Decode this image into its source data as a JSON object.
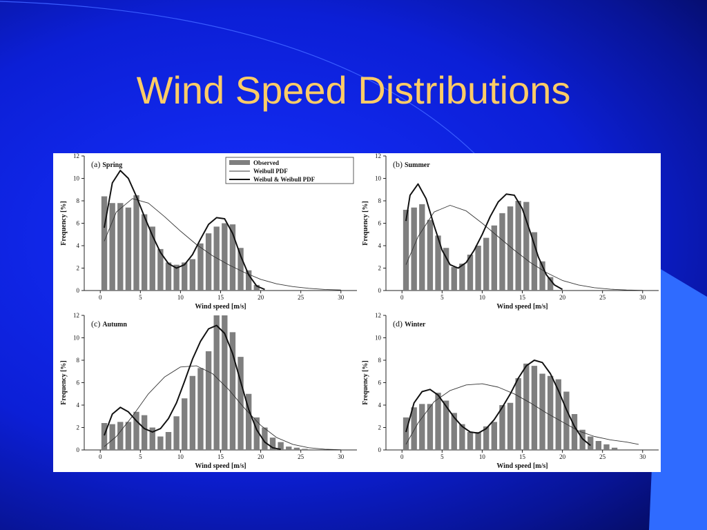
{
  "slide": {
    "title": "Wind Speed Distributions"
  },
  "colors": {
    "background": "#0c1fd6",
    "title": "#ffcc66",
    "bars": "#7f7f7f",
    "weibull": "#333333",
    "mixture": "#111111"
  },
  "chart_data": [
    {
      "type": "bar",
      "panel_label": "(a)",
      "title": "Spring",
      "xlabel": "Wind speed [m/s]",
      "ylabel": "Frequency [%]",
      "xlim": [
        -2,
        32
      ],
      "ylim": [
        0,
        12
      ],
      "xticks": [
        0,
        5,
        10,
        15,
        20,
        25,
        30
      ],
      "yticks": [
        0,
        2,
        4,
        6,
        8,
        10,
        12
      ],
      "legend_position": "top-right",
      "legend": [
        "Observed",
        "Weibull  PDF",
        "Weibul & Weibull PDF"
      ],
      "series": [
        {
          "name": "Observed",
          "x": [
            0.5,
            1.5,
            2.5,
            3.5,
            4.5,
            5.5,
            6.5,
            7.5,
            8.5,
            9.5,
            10.5,
            11.5,
            12.5,
            13.5,
            14.5,
            15.5,
            16.5,
            17.5,
            18.5,
            19.5
          ],
          "values": [
            8.4,
            7.8,
            7.8,
            7.4,
            8.5,
            6.8,
            5.7,
            3.7,
            2.5,
            2.3,
            2.5,
            2.8,
            4.2,
            5.1,
            5.7,
            6.0,
            5.9,
            3.8,
            1.8,
            0.5
          ]
        },
        {
          "name": "Weibull  PDF",
          "x": [
            0.5,
            2,
            4,
            6,
            8,
            10,
            12,
            14,
            16,
            18,
            20,
            22,
            24,
            26,
            28,
            30
          ],
          "values": [
            4.4,
            7.0,
            8.2,
            7.8,
            6.6,
            5.3,
            4.1,
            3.1,
            2.3,
            1.6,
            1.0,
            0.6,
            0.35,
            0.2,
            0.1,
            0.05
          ]
        },
        {
          "name": "Weibul & Weibull PDF",
          "x": [
            0.5,
            1.5,
            2.5,
            3.5,
            4.5,
            5.5,
            6.5,
            7.5,
            8.5,
            9.5,
            10.5,
            11.5,
            12.5,
            13.5,
            14.5,
            15.5,
            16.5,
            17.5,
            18.5,
            19.5,
            20.5
          ],
          "values": [
            5.6,
            9.6,
            10.7,
            10.0,
            8.4,
            6.6,
            4.9,
            3.4,
            2.4,
            2.0,
            2.3,
            3.2,
            4.6,
            5.9,
            6.5,
            6.4,
            5.1,
            3.1,
            1.4,
            0.4,
            0.1
          ]
        }
      ]
    },
    {
      "type": "bar",
      "panel_label": "(b)",
      "title": "Summer",
      "xlabel": "Wind speed [m/s]",
      "ylabel": "Frequency [%]",
      "xlim": [
        -2,
        32
      ],
      "ylim": [
        0,
        12
      ],
      "xticks": [
        0,
        5,
        10,
        15,
        20,
        25,
        30
      ],
      "yticks": [
        0,
        2,
        4,
        6,
        8,
        10,
        12
      ],
      "series": [
        {
          "name": "Observed",
          "x": [
            0.5,
            1.5,
            2.5,
            3.5,
            4.5,
            5.5,
            6.5,
            7.5,
            8.5,
            9.5,
            10.5,
            11.5,
            12.5,
            13.5,
            14.5,
            15.5,
            16.5,
            17.5,
            18.5
          ],
          "values": [
            7.2,
            7.4,
            7.7,
            6.3,
            4.9,
            3.8,
            2.1,
            2.4,
            3.2,
            4.0,
            4.7,
            5.8,
            6.9,
            7.5,
            8.0,
            7.9,
            5.2,
            2.6,
            1.2
          ]
        },
        {
          "name": "Weibull  PDF",
          "x": [
            0.5,
            2,
            4,
            6,
            8,
            10,
            12,
            14,
            16,
            18,
            20,
            22,
            24,
            26,
            28,
            30
          ],
          "values": [
            2.3,
            4.8,
            7.0,
            7.6,
            7.1,
            6.0,
            4.8,
            3.6,
            2.5,
            1.6,
            0.9,
            0.5,
            0.25,
            0.12,
            0.05,
            0.02
          ]
        },
        {
          "name": "Weibul & Weibull PDF",
          "x": [
            0.5,
            1,
            2,
            3,
            4,
            5,
            6,
            7,
            8,
            9,
            10,
            11,
            12,
            13,
            14,
            15,
            16,
            17,
            18,
            19,
            20
          ],
          "values": [
            6.2,
            8.5,
            9.5,
            8.2,
            5.8,
            3.6,
            2.3,
            2.0,
            2.5,
            3.6,
            5.0,
            6.6,
            7.9,
            8.6,
            8.5,
            7.3,
            5.2,
            3.0,
            1.4,
            0.5,
            0.1
          ]
        }
      ]
    },
    {
      "type": "bar",
      "panel_label": "(c)",
      "title": "Autumn",
      "xlabel": "Wind speed [m/s]",
      "ylabel": "Frequency [%]",
      "xlim": [
        -2,
        32
      ],
      "ylim": [
        0,
        12
      ],
      "xticks": [
        0,
        5,
        10,
        15,
        20,
        25,
        30
      ],
      "yticks": [
        0,
        2,
        4,
        6,
        8,
        10,
        12
      ],
      "series": [
        {
          "name": "Observed",
          "x": [
            0.5,
            1.5,
            2.5,
            3.5,
            4.5,
            5.5,
            6.5,
            7.5,
            8.5,
            9.5,
            10.5,
            11.5,
            12.5,
            13.5,
            14.5,
            15.5,
            16.5,
            17.5,
            18.5,
            19.5,
            20.5,
            21.5,
            22.5,
            23.5,
            24.5,
            25.5
          ],
          "values": [
            2.4,
            2.3,
            2.5,
            2.5,
            3.4,
            3.1,
            2.0,
            1.2,
            1.6,
            3.0,
            4.6,
            6.6,
            7.3,
            8.8,
            12.0,
            12.0,
            10.5,
            8.3,
            5.0,
            2.9,
            2.0,
            1.1,
            0.7,
            0.3,
            0.2,
            0.1
          ]
        },
        {
          "name": "Weibull  PDF",
          "x": [
            0.5,
            2,
            4,
            6,
            8,
            10,
            12,
            14,
            16,
            18,
            20,
            22,
            24,
            26,
            28,
            30
          ],
          "values": [
            0.3,
            1.2,
            3.0,
            5.0,
            6.5,
            7.4,
            7.5,
            6.8,
            5.4,
            3.7,
            2.2,
            1.1,
            0.5,
            0.2,
            0.07,
            0.02
          ]
        },
        {
          "name": "Weibul & Weibull PDF",
          "x": [
            0.5,
            1.5,
            2.5,
            3.5,
            4.5,
            5.5,
            6.5,
            7.5,
            8.5,
            9.5,
            10.5,
            11.5,
            12.5,
            13.5,
            14.5,
            15.5,
            16.5,
            17.5,
            18.5,
            19.5,
            20.5,
            21.5,
            22.5
          ],
          "values": [
            1.3,
            3.2,
            3.8,
            3.4,
            2.6,
            1.9,
            1.6,
            1.9,
            2.8,
            4.2,
            6.1,
            8.1,
            9.7,
            10.8,
            11.1,
            10.4,
            8.6,
            6.1,
            3.6,
            1.8,
            0.7,
            0.2,
            0.05
          ]
        }
      ]
    },
    {
      "type": "bar",
      "panel_label": "(d)",
      "title": "Winter",
      "xlabel": "Wind speed [m/s]",
      "ylabel": "Frequency [%]",
      "xlim": [
        -2,
        32
      ],
      "ylim": [
        0,
        12
      ],
      "xticks": [
        0,
        5,
        10,
        15,
        20,
        25,
        30
      ],
      "yticks": [
        0,
        2,
        4,
        6,
        8,
        10,
        12
      ],
      "series": [
        {
          "name": "Observed",
          "x": [
            0.5,
            1.5,
            2.5,
            3.5,
            4.5,
            5.5,
            6.5,
            7.5,
            8.5,
            9.5,
            10.5,
            11.5,
            12.5,
            13.5,
            14.5,
            15.5,
            16.5,
            17.5,
            18.5,
            19.5,
            20.5,
            21.5,
            22.5,
            23.5,
            24.5,
            25.5,
            26.5
          ],
          "values": [
            2.9,
            3.8,
            4.1,
            4.1,
            5.1,
            4.4,
            3.3,
            2.3,
            1.6,
            1.6,
            2.1,
            2.5,
            4.0,
            4.2,
            6.4,
            7.7,
            7.5,
            6.8,
            6.6,
            6.3,
            5.2,
            3.2,
            1.8,
            1.2,
            0.8,
            0.5,
            0.2
          ]
        },
        {
          "name": "Weibull  PDF",
          "x": [
            0.5,
            2,
            4,
            6,
            8,
            10,
            12,
            14,
            16,
            18,
            20,
            22,
            24,
            26,
            28,
            29.5
          ],
          "values": [
            0.5,
            2.4,
            4.3,
            5.3,
            5.8,
            5.9,
            5.6,
            5.0,
            4.2,
            3.3,
            2.5,
            1.7,
            1.2,
            0.9,
            0.7,
            0.5
          ]
        },
        {
          "name": "Weibul & Weibull PDF",
          "x": [
            0.5,
            1.5,
            2.5,
            3.5,
            4.5,
            5.5,
            6.5,
            7.5,
            8.5,
            9.5,
            10.5,
            11.5,
            12.5,
            13.5,
            14.5,
            15.5,
            16.5,
            17.5,
            18.5,
            19.5,
            20.5,
            21.5,
            22.5,
            23.5
          ],
          "values": [
            1.6,
            4.2,
            5.2,
            5.4,
            4.9,
            3.9,
            2.9,
            2.1,
            1.6,
            1.5,
            1.9,
            2.7,
            3.8,
            5.0,
            6.4,
            7.5,
            8.0,
            7.8,
            6.8,
            5.3,
            3.6,
            2.1,
            1.0,
            0.4
          ]
        }
      ]
    }
  ]
}
